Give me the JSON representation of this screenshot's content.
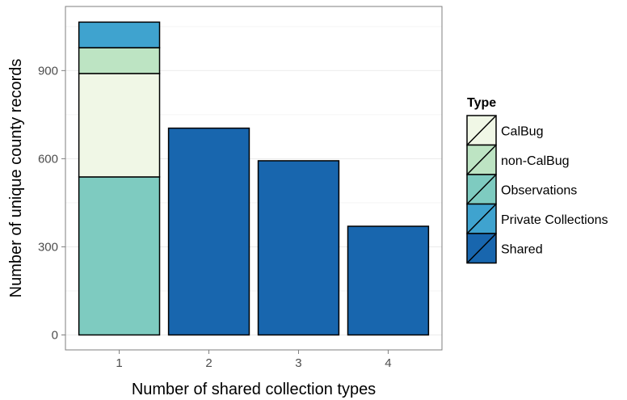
{
  "chart_data": {
    "type": "bar",
    "stacked": true,
    "xlabel": "Number of shared collection types",
    "ylabel": "Number of unique county records",
    "categories": [
      "1",
      "2",
      "3",
      "4"
    ],
    "ylim": [
      0,
      1100
    ],
    "yticks": [
      "0",
      "300",
      "600",
      "900"
    ],
    "grid": true,
    "legend_title": "Type",
    "legend_position": "right",
    "series": [
      {
        "name": "Observations",
        "color": "#7ecbc0",
        "values": [
          538,
          0,
          0,
          0
        ]
      },
      {
        "name": "CalBug",
        "color": "#f0f7e6",
        "values": [
          352,
          0,
          0,
          0
        ]
      },
      {
        "name": "non-CalBug",
        "color": "#bde4c3",
        "values": [
          88,
          0,
          0,
          0
        ]
      },
      {
        "name": "Private Collections",
        "color": "#3fa3cf",
        "values": [
          87,
          0,
          0,
          0
        ]
      },
      {
        "name": "Shared",
        "color": "#1866ae",
        "values": [
          0,
          704,
          593,
          370
        ]
      }
    ],
    "legend_order": [
      "CalBug",
      "non-CalBug",
      "Observations",
      "Private Collections",
      "Shared"
    ]
  }
}
